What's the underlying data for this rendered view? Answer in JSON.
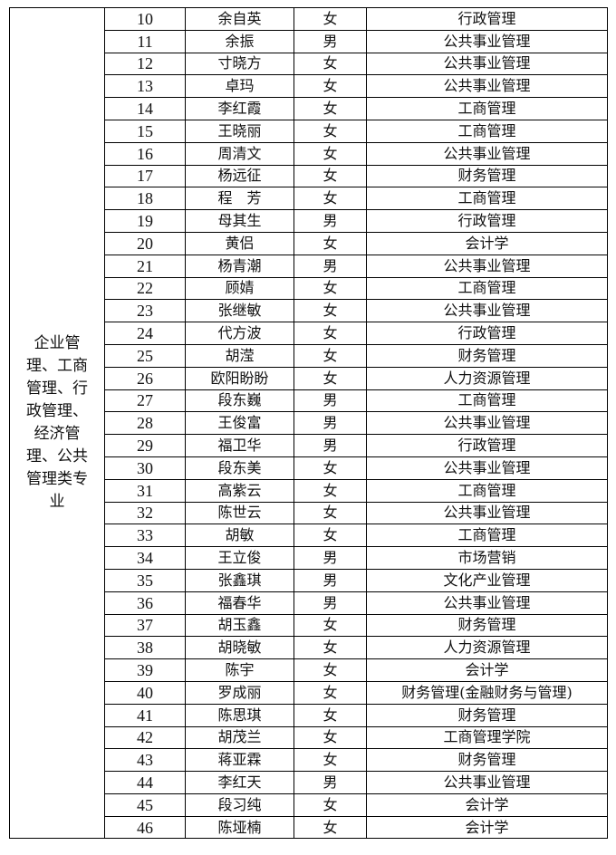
{
  "group_label_lines": [
    "企业管",
    "理、工商",
    "管理、行",
    "政管理、",
    "经济管",
    "理、公共",
    "管理类专",
    "业"
  ],
  "rows": [
    {
      "no": "10",
      "name": "余自英",
      "gender": "女",
      "major": "行政管理"
    },
    {
      "no": "11",
      "name": "余振",
      "gender": "男",
      "major": "公共事业管理"
    },
    {
      "no": "12",
      "name": "寸晓方",
      "gender": "女",
      "major": "公共事业管理"
    },
    {
      "no": "13",
      "name": "卓玛",
      "gender": "女",
      "major": "公共事业管理"
    },
    {
      "no": "14",
      "name": "李红霞",
      "gender": "女",
      "major": "工商管理"
    },
    {
      "no": "15",
      "name": "王晓丽",
      "gender": "女",
      "major": "工商管理"
    },
    {
      "no": "16",
      "name": "周清文",
      "gender": "女",
      "major": "公共事业管理"
    },
    {
      "no": "17",
      "name": "杨远征",
      "gender": "女",
      "major": "财务管理"
    },
    {
      "no": "18",
      "name": "程　芳",
      "gender": "女",
      "major": "工商管理"
    },
    {
      "no": "19",
      "name": "母其生",
      "gender": "男",
      "major": "行政管理"
    },
    {
      "no": "20",
      "name": "黄侣",
      "gender": "女",
      "major": "会计学"
    },
    {
      "no": "21",
      "name": "杨青潮",
      "gender": "男",
      "major": "公共事业管理"
    },
    {
      "no": "22",
      "name": "顾婧",
      "gender": "女",
      "major": "工商管理"
    },
    {
      "no": "23",
      "name": "张继敏",
      "gender": "女",
      "major": "公共事业管理"
    },
    {
      "no": "24",
      "name": "代方波",
      "gender": "女",
      "major": "行政管理"
    },
    {
      "no": "25",
      "name": "胡滢",
      "gender": "女",
      "major": "财务管理"
    },
    {
      "no": "26",
      "name": "欧阳盼盼",
      "gender": "女",
      "major": "人力资源管理"
    },
    {
      "no": "27",
      "name": "段东巍",
      "gender": "男",
      "major": "工商管理"
    },
    {
      "no": "28",
      "name": "王俊富",
      "gender": "男",
      "major": "公共事业管理"
    },
    {
      "no": "29",
      "name": "福卫华",
      "gender": "男",
      "major": "行政管理"
    },
    {
      "no": "30",
      "name": "段东美",
      "gender": "女",
      "major": "公共事业管理"
    },
    {
      "no": "31",
      "name": "高紫云",
      "gender": "女",
      "major": "工商管理"
    },
    {
      "no": "32",
      "name": "陈世云",
      "gender": "女",
      "major": "公共事业管理"
    },
    {
      "no": "33",
      "name": "胡敏",
      "gender": "女",
      "major": "工商管理"
    },
    {
      "no": "34",
      "name": "王立俊",
      "gender": "男",
      "major": "市场营销"
    },
    {
      "no": "35",
      "name": "张鑫琪",
      "gender": "男",
      "major": "文化产业管理"
    },
    {
      "no": "36",
      "name": "福春华",
      "gender": "男",
      "major": "公共事业管理"
    },
    {
      "no": "37",
      "name": "胡玉鑫",
      "gender": "女",
      "major": "财务管理"
    },
    {
      "no": "38",
      "name": "胡晓敏",
      "gender": "女",
      "major": "人力资源管理"
    },
    {
      "no": "39",
      "name": "陈宇",
      "gender": "女",
      "major": "会计学"
    },
    {
      "no": "40",
      "name": "罗成丽",
      "gender": "女",
      "major": "财务管理(金融财务与管理)"
    },
    {
      "no": "41",
      "name": "陈思琪",
      "gender": "女",
      "major": "财务管理"
    },
    {
      "no": "42",
      "name": "胡茂兰",
      "gender": "女",
      "major": "工商管理学院"
    },
    {
      "no": "43",
      "name": "蒋亚霖",
      "gender": "女",
      "major": "财务管理"
    },
    {
      "no": "44",
      "name": "李红天",
      "gender": "男",
      "major": "公共事业管理"
    },
    {
      "no": "45",
      "name": "段习纯",
      "gender": "女",
      "major": "会计学"
    },
    {
      "no": "46",
      "name": "陈垭楠",
      "gender": "女",
      "major": "会计学"
    }
  ]
}
